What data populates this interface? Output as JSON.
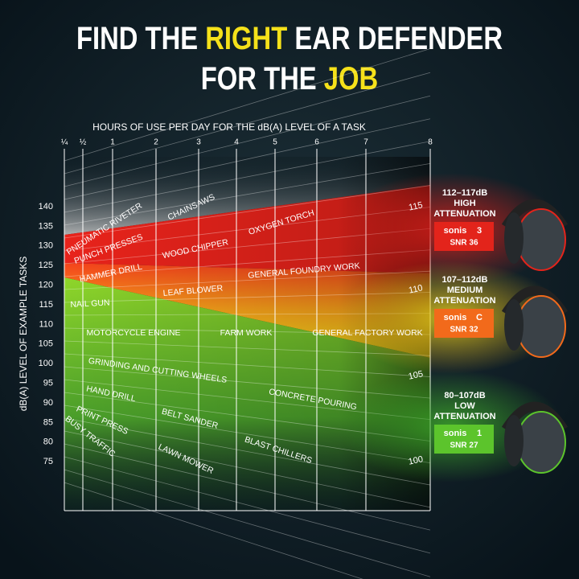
{
  "title": {
    "line1_before": "FIND THE",
    "line1_highlight": "RIGHT",
    "line1_after": "EAR DEFENDER",
    "line2_before": "FOR THE",
    "line2_highlight": "JOB"
  },
  "x_axis": {
    "label": "HOURS OF USE PER DAY FOR THE dB(A) LEVEL OF A TASK",
    "ticks": [
      "¼",
      "½",
      "1",
      "2",
      "3",
      "4",
      "5",
      "6",
      "7",
      "8"
    ]
  },
  "y_axis": {
    "label": "dB(A) LEVEL OF EXAMPLE TASKS",
    "ticks": [
      140,
      135,
      130,
      125,
      120,
      115,
      110,
      105,
      100,
      95,
      90,
      85,
      80,
      75
    ]
  },
  "scale_labels": [
    115,
    110,
    105,
    100
  ],
  "tasks": [
    "PNEUMATIC RIVETER",
    "CHAINSAWS",
    "PUNCH PRESSES",
    "OXYGEN TORCH",
    "WOOD CHIPPER",
    "HAMMER DRILL",
    "GENERAL FOUNDRY WORK",
    "LEAF BLOWER",
    "NAIL GUN",
    "MOTORCYCLE ENGINE",
    "FARM WORK",
    "GENERAL FACTORY WORK",
    "GRINDING AND CUTTING WHEELS",
    "CONCRETE POURING",
    "HAND DRILL",
    "BELT SANDER",
    "PRINT PRESS",
    "BLAST CHILLERS",
    "BUSY TRAFFIC",
    "LAWN MOWER"
  ],
  "products": [
    {
      "range": "112–117dB",
      "level": "HIGH",
      "attenuation": "ATTENUATION",
      "brand": "sonis",
      "model": "3",
      "snr": "SNR 36"
    },
    {
      "range": "107–112dB",
      "level": "MEDIUM",
      "attenuation": "ATTENUATION",
      "brand": "sonis",
      "model": "C",
      "snr": "SNR 32"
    },
    {
      "range": "80–107dB",
      "level": "LOW",
      "attenuation": "ATTENUATION",
      "brand": "sonis",
      "model": "1",
      "snr": "SNR 27"
    }
  ]
}
